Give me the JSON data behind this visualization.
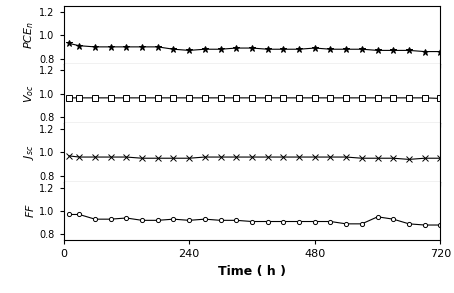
{
  "xlabel": "Time ( h )",
  "xlim": [
    0,
    720
  ],
  "xticks": [
    0,
    240,
    480,
    720
  ],
  "xticklabels": [
    "0",
    "240",
    "480",
    "720"
  ],
  "subplots": [
    {
      "ylabel": "PCE$_n$",
      "ylim": [
        0.75,
        1.25
      ],
      "yticks": [
        0.8,
        1.0,
        1.2
      ],
      "marker": "*",
      "markerfacecolor": "black",
      "markersize": 5,
      "data_x": [
        10,
        30,
        60,
        90,
        120,
        150,
        180,
        210,
        240,
        270,
        300,
        330,
        360,
        390,
        420,
        450,
        480,
        510,
        540,
        570,
        600,
        630,
        660,
        690,
        720
      ],
      "data_y": [
        0.93,
        0.91,
        0.9,
        0.9,
        0.9,
        0.9,
        0.9,
        0.88,
        0.87,
        0.88,
        0.88,
        0.89,
        0.89,
        0.88,
        0.88,
        0.88,
        0.89,
        0.88,
        0.88,
        0.88,
        0.87,
        0.87,
        0.87,
        0.86,
        0.86
      ]
    },
    {
      "ylabel": "$V_{oc}$",
      "ylim": [
        0.75,
        1.25
      ],
      "yticks": [
        0.8,
        1.0,
        1.2
      ],
      "marker": "s",
      "markerfacecolor": "white",
      "markersize": 4,
      "data_x": [
        10,
        30,
        60,
        90,
        120,
        150,
        180,
        210,
        240,
        270,
        300,
        330,
        360,
        390,
        420,
        450,
        480,
        510,
        540,
        570,
        600,
        630,
        660,
        690,
        720
      ],
      "data_y": [
        0.965,
        0.965,
        0.965,
        0.965,
        0.965,
        0.965,
        0.965,
        0.965,
        0.965,
        0.965,
        0.965,
        0.965,
        0.965,
        0.965,
        0.965,
        0.965,
        0.965,
        0.965,
        0.965,
        0.965,
        0.965,
        0.965,
        0.965,
        0.965,
        0.96
      ]
    },
    {
      "ylabel": "$J_{sc}$",
      "ylim": [
        0.75,
        1.25
      ],
      "yticks": [
        0.8,
        1.0,
        1.2
      ],
      "marker": "x",
      "markerfacecolor": "black",
      "markersize": 4,
      "data_x": [
        10,
        30,
        60,
        90,
        120,
        150,
        180,
        210,
        240,
        270,
        300,
        330,
        360,
        390,
        420,
        450,
        480,
        510,
        540,
        570,
        600,
        630,
        660,
        690,
        720
      ],
      "data_y": [
        0.97,
        0.96,
        0.96,
        0.96,
        0.96,
        0.95,
        0.95,
        0.95,
        0.95,
        0.96,
        0.96,
        0.96,
        0.96,
        0.96,
        0.96,
        0.96,
        0.96,
        0.96,
        0.96,
        0.95,
        0.95,
        0.95,
        0.94,
        0.95,
        0.95
      ]
    },
    {
      "ylabel": "$FF$",
      "ylim": [
        0.75,
        1.25
      ],
      "yticks": [
        0.8,
        1.0,
        1.2
      ],
      "marker": "o",
      "markerfacecolor": "white",
      "markersize": 3,
      "data_x": [
        10,
        30,
        60,
        90,
        120,
        150,
        180,
        210,
        240,
        270,
        300,
        330,
        360,
        390,
        420,
        450,
        480,
        510,
        540,
        570,
        600,
        630,
        660,
        690,
        720
      ],
      "data_y": [
        0.97,
        0.97,
        0.93,
        0.93,
        0.94,
        0.92,
        0.92,
        0.93,
        0.92,
        0.93,
        0.92,
        0.92,
        0.91,
        0.91,
        0.91,
        0.91,
        0.91,
        0.91,
        0.89,
        0.89,
        0.95,
        0.93,
        0.89,
        0.88,
        0.88
      ]
    }
  ],
  "line_color": "black",
  "line_width": 0.8
}
